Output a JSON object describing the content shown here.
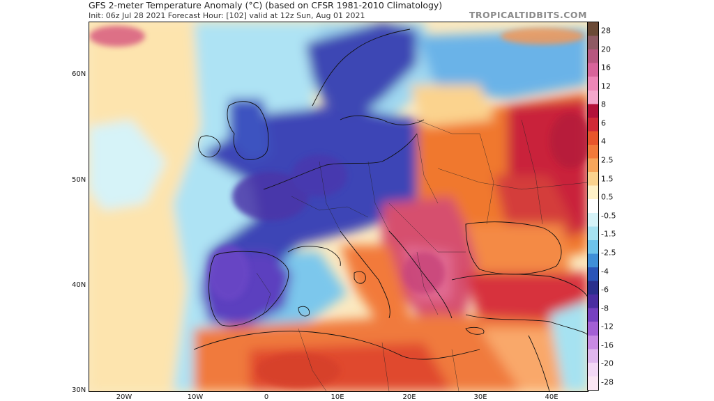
{
  "header": {
    "title": "GFS 2-meter Temperature Anomaly (°C) (based on CFSR 1981-2010 Climatology)",
    "subtitle": "Init: 06z Jul 28 2021   Forecast Hour: [102]   valid at 12z Sun, Aug 01 2021",
    "brand": "TROPICALTIDBITS.COM"
  },
  "colorbar": {
    "labels": [
      "28",
      "20",
      "16",
      "12",
      "8",
      "6",
      "4",
      "2.5",
      "1.5",
      "0.5",
      "-0.5",
      "-1.5",
      "-2.5",
      "-4",
      "-6",
      "-8",
      "-12",
      "-16",
      "-20",
      "-28"
    ],
    "colors": [
      "#6b4a36",
      "#8e5a63",
      "#b7577f",
      "#d8649a",
      "#ee86b7",
      "#f4a7cc",
      "#b3123a",
      "#d12a37",
      "#e8552b",
      "#f27a3a",
      "#f7a65b",
      "#fbd38e",
      "#fff2c8",
      "#ffffff",
      "#d6f3f8",
      "#a6e2f1",
      "#6ec3ea",
      "#3f8fd8",
      "#2a55b8",
      "#2a2f8c",
      "#4a2da1",
      "#7640c0",
      "#a35fd5",
      "#c88ae4",
      "#e0b7ee",
      "#f3d8f5",
      "#fbe6f3"
    ]
  },
  "axes": {
    "lat_labels": [
      "60N",
      "50N",
      "40N",
      "30N"
    ],
    "lon_labels": [
      "20W",
      "10W",
      "0",
      "10E",
      "20E",
      "30E",
      "40E"
    ]
  },
  "colors": {
    "ocean_warm": "#fde7b5",
    "ocean_cool": "#bfe9f5",
    "cold_core": "#3f47b8",
    "hot_core": "#d7303c",
    "sahara": "#f07a3c"
  }
}
